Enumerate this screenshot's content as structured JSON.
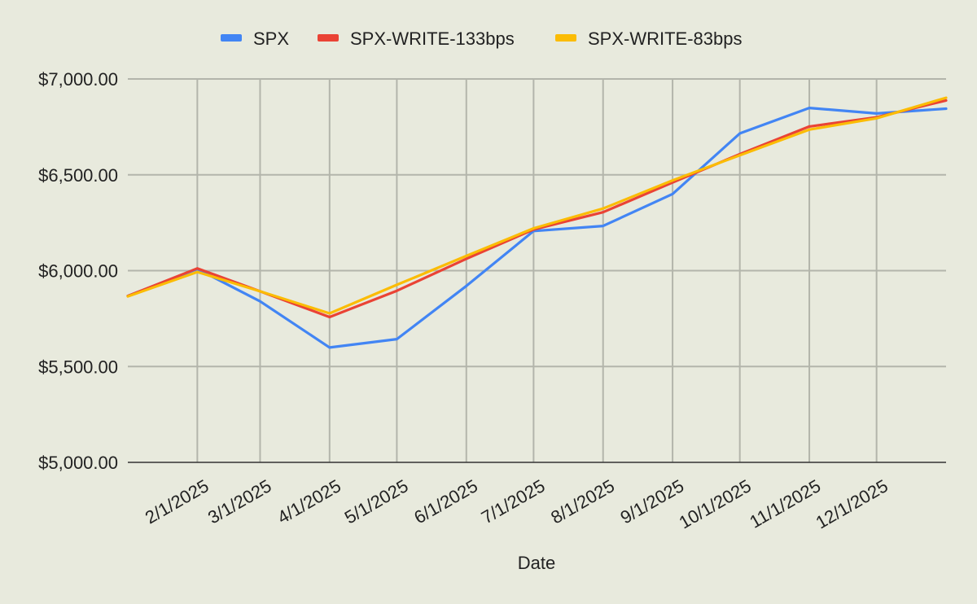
{
  "chart_data": {
    "type": "line",
    "xlabel": "Date",
    "ylabel": "",
    "ylim": [
      5000,
      7000
    ],
    "yticks": [
      5000,
      5500,
      6000,
      6500,
      7000
    ],
    "ytick_labels": [
      "$5,000.00",
      "$5,500.00",
      "$6,000.00",
      "$6,500.00",
      "$7,000.00"
    ],
    "x": [
      "2025-01-01",
      "2025-02-01",
      "2025-03-01",
      "2025-04-01",
      "2025-05-01",
      "2025-06-01",
      "2025-07-01",
      "2025-08-01",
      "2025-09-01",
      "2025-10-01",
      "2025-11-01",
      "2025-12-01",
      "2026-01-01"
    ],
    "xlim": [
      "2025-01-01",
      "2026-01-01"
    ],
    "xtick_values": [
      "2025-02-01",
      "2025-03-01",
      "2025-04-01",
      "2025-05-01",
      "2025-06-01",
      "2025-07-01",
      "2025-08-01",
      "2025-09-01",
      "2025-10-01",
      "2025-11-01",
      "2025-12-01"
    ],
    "xtick_labels": [
      "2/1/2025",
      "3/1/2025",
      "4/1/2025",
      "5/1/2025",
      "6/1/2025",
      "7/1/2025",
      "8/1/2025",
      "9/1/2025",
      "10/1/2025",
      "11/1/2025",
      "12/1/2025"
    ],
    "legend_position": "top",
    "grid": true,
    "series": [
      {
        "name": "SPX",
        "color": "#4285f4",
        "values": [
          5868,
          6009,
          5840,
          5599,
          5643,
          5920,
          6207,
          6233,
          6400,
          6716,
          6849,
          6820,
          6845
        ]
      },
      {
        "name": "SPX-WRITE-133bps",
        "color": "#ea4335",
        "values": [
          5868,
          6012,
          5892,
          5758,
          5895,
          6062,
          6215,
          6305,
          6460,
          6608,
          6752,
          6800,
          6888
        ]
      },
      {
        "name": "SPX-WRITE-83bps",
        "color": "#fbbc04",
        "values": [
          5866,
          5993,
          5892,
          5777,
          5926,
          6077,
          6221,
          6324,
          6471,
          6602,
          6736,
          6795,
          6902
        ]
      }
    ]
  }
}
